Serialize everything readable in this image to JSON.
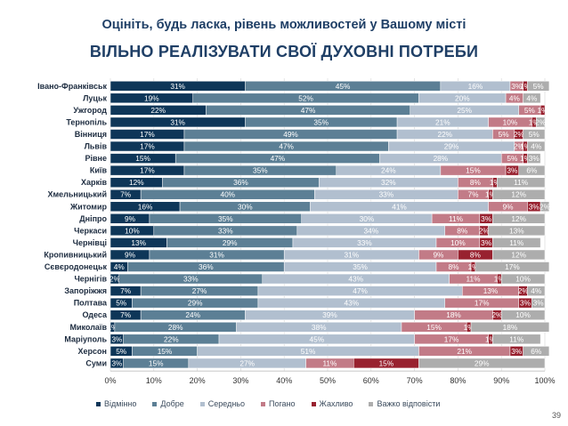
{
  "title_line1": "Оцініть, будь ласка, рівень можливостей у Вашому місті",
  "title_line2": "ВІЛЬНО РЕАЛІЗУВАТИ СВОЇ ДУХОВНІ ПОТРЕБИ",
  "page_number": "39",
  "colors": {
    "vidminno": "#0e3658",
    "dobre": "#5c7f95",
    "seredno": "#b1bfcf",
    "pogano": "#c27b87",
    "zhakhlyvo": "#98212f",
    "vazhko": "#adadad"
  },
  "chart_data": {
    "type": "bar",
    "orientation": "horizontal-stacked-100",
    "categories": [
      "Івано-Франківськ",
      "Луцьк",
      "Ужгород",
      "Тернопіль",
      "Вінниця",
      "Львів",
      "Рівне",
      "Київ",
      "Харків",
      "Хмельницький",
      "Житомир",
      "Дніпро",
      "Черкаси",
      "Чернівці",
      "Кропивницький",
      "Сєвєродонецьк",
      "Чернігів",
      "Запоріжжя",
      "Полтава",
      "Одеса",
      "Миколаїв",
      "Маріуполь",
      "Херсон",
      "Суми"
    ],
    "series": [
      {
        "name": "Відмінно",
        "values": [
          31,
          19,
          22,
          31,
          17,
          17,
          15,
          17,
          12,
          7,
          16,
          9,
          10,
          13,
          9,
          4,
          2,
          7,
          5,
          7,
          1,
          3,
          5,
          3
        ]
      },
      {
        "name": "Добре",
        "values": [
          45,
          52,
          47,
          35,
          49,
          47,
          47,
          35,
          36,
          40,
          30,
          35,
          33,
          29,
          31,
          36,
          33,
          27,
          29,
          24,
          28,
          22,
          15,
          15
        ]
      },
      {
        "name": "Середньо",
        "values": [
          16,
          20,
          25,
          21,
          22,
          29,
          28,
          24,
          32,
          33,
          41,
          30,
          34,
          33,
          31,
          35,
          43,
          47,
          43,
          39,
          38,
          45,
          51,
          27
        ]
      },
      {
        "name": "Погано",
        "values": [
          3,
          4,
          5,
          10,
          5,
          2,
          5,
          15,
          8,
          7,
          9,
          11,
          8,
          10,
          9,
          8,
          11,
          13,
          17,
          18,
          15,
          17,
          21,
          11
        ]
      },
      {
        "name": "Жахливо",
        "values": [
          1,
          0,
          1,
          1,
          2,
          1,
          1,
          3,
          1,
          1,
          3,
          3,
          2,
          3,
          8,
          1,
          1,
          2,
          3,
          2,
          1,
          1,
          3,
          15
        ]
      },
      {
        "name": "Важко відповісти",
        "values": [
          5,
          4,
          0,
          2,
          5,
          4,
          3,
          6,
          11,
          12,
          2,
          12,
          13,
          11,
          12,
          17,
          10,
          4,
          3,
          10,
          18,
          11,
          6,
          29
        ]
      }
    ],
    "xlim": [
      0,
      100
    ],
    "xticks": [
      "0%",
      "10%",
      "20%",
      "30%",
      "40%",
      "50%",
      "60%",
      "70%",
      "80%",
      "90%",
      "100%"
    ],
    "legend_position": "bottom",
    "grid": "vertical"
  }
}
